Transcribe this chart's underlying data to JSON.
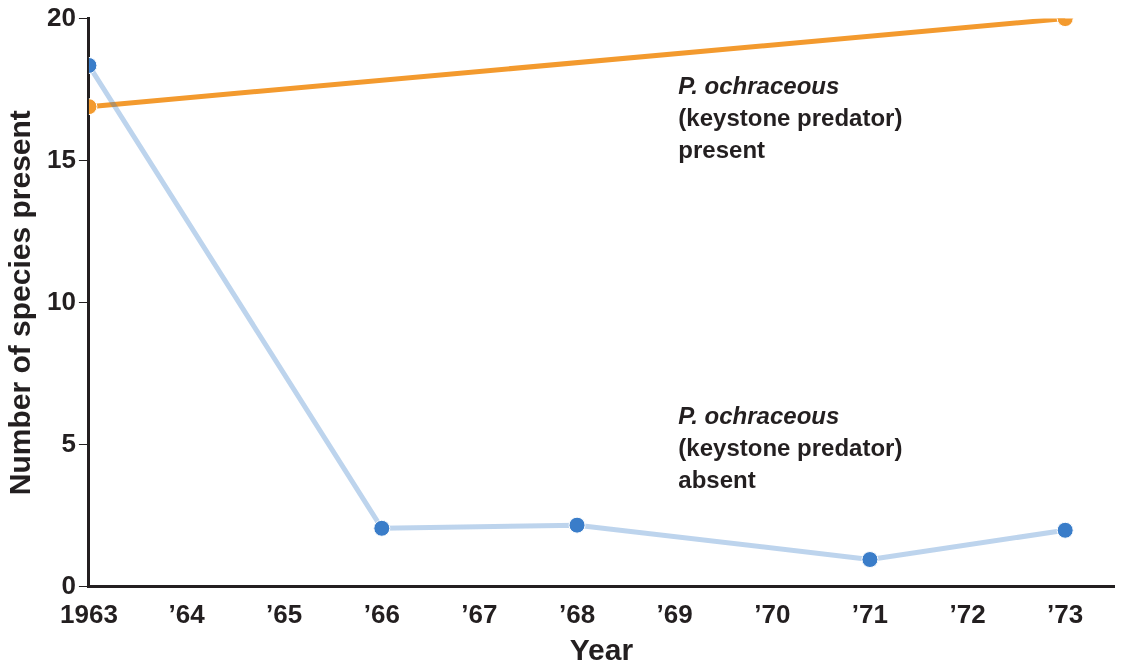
{
  "chart_data": {
    "type": "line",
    "xlabel": "Year",
    "ylabel": "Number of species present",
    "xlim": [
      1963,
      1973.5
    ],
    "xticks": [
      1963,
      {
        "value": 1964,
        "label": "’64"
      },
      {
        "value": 1965,
        "label": "’65"
      },
      {
        "value": 1966,
        "label": "’66"
      },
      {
        "value": 1967,
        "label": "’67"
      },
      {
        "value": 1968,
        "label": "’68"
      },
      {
        "value": 1969,
        "label": "’69"
      },
      {
        "value": 1970,
        "label": "’70"
      },
      {
        "value": 1971,
        "label": "’71"
      },
      {
        "value": 1972,
        "label": "’72"
      },
      {
        "value": 1973,
        "label": "’73"
      }
    ],
    "ylim": [
      0,
      20
    ],
    "yticks": [
      0,
      5,
      10,
      15,
      20
    ],
    "grid": false,
    "legend": false,
    "marker": "circle",
    "line_style": "solid",
    "series": [
      {
        "color": "#f39a2e",
        "x": [
          1963,
          1973
        ],
        "values": [
          16.9,
          20
        ]
      },
      {
        "color": "#3a7dc9",
        "x": [
          1963,
          1966,
          1968,
          1971,
          1973
        ],
        "values": [
          18.35,
          2.06,
          2.17,
          0.96,
          1.99
        ]
      }
    ],
    "annotations": [
      "P. ochraceous\n(keystone predator)\npresent",
      "P. ochraceous\n(keystone predator)\nabsent"
    ]
  }
}
